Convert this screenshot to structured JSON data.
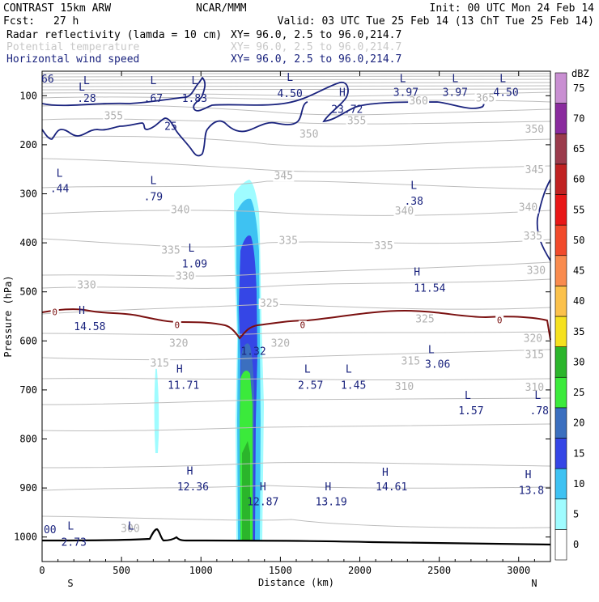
{
  "header": {
    "left_title": "CONTRAST 15km ARW",
    "fcst_label": "Fcst:",
    "fcst_value": "27 h",
    "center_title": "NCAR/MMM",
    "init": "Init: 00 UTC Mon 24 Feb 14",
    "valid": "Valid: 03 UTC Tue 25 Feb 14 (13 ChT Tue 25 Feb 14)",
    "fields": [
      {
        "name": "Radar reflectivity (lamda = 10 cm)",
        "xy": "XY=  96.0,  2.5 to  96.0,214.7",
        "color": "#000000"
      },
      {
        "name": "Potential temperature",
        "xy": "XY=  96.0,  2.5 to  96.0,214.7",
        "color": "#c8c8c8"
      },
      {
        "name": "Horizontal wind speed",
        "xy": "XY=  96.0,  2.5 to  96.0,214.7",
        "color": "#1a237e"
      }
    ]
  },
  "chart_data": {
    "type": "cross-section",
    "title": "CONTRAST 15km ARW",
    "xlabel": "Distance (km)",
    "ylabel": "Pressure (hPa)",
    "xlim": [
      0,
      3200
    ],
    "ylim": [
      1050,
      50
    ],
    "x_ticks": [
      0,
      500,
      1000,
      1500,
      2000,
      2500,
      3000
    ],
    "x_tick_labels": [
      "0",
      "500",
      "1000",
      "1500",
      "2000",
      "2500",
      "3000"
    ],
    "y_ticks": [
      100,
      200,
      300,
      400,
      500,
      600,
      700,
      800,
      900,
      1000
    ],
    "y_tick_labels": [
      "100",
      "200",
      "300",
      "400",
      "500",
      "600",
      "700",
      "800",
      "900",
      "1000"
    ],
    "x_end_labels": {
      "left": "S",
      "right": "N"
    },
    "colorbar": {
      "unit": "dBZ",
      "levels": [
        0,
        5,
        10,
        15,
        20,
        25,
        30,
        35,
        40,
        45,
        50,
        55,
        60,
        65,
        70,
        75
      ],
      "colors": [
        "#ffffff",
        "#9ffcff",
        "#3ec2f2",
        "#3546e6",
        "#3b6fbf",
        "#3bea3b",
        "#2bb52b",
        "#f5e11f",
        "#fbc14b",
        "#f98b4e",
        "#f14a2b",
        "#e81717",
        "#c02222",
        "#9b3b4c",
        "#8a2b9e",
        "#c98fd2"
      ]
    },
    "theta_labels": [
      {
        "text": "365",
        "x": 2790,
        "p": 112
      },
      {
        "text": "360",
        "x": 2370,
        "p": 118
      },
      {
        "text": "355",
        "x": 1980,
        "p": 158
      },
      {
        "text": "355",
        "x": 450,
        "p": 148
      },
      {
        "text": "350",
        "x": 1680,
        "p": 185
      },
      {
        "text": "350",
        "x": 3100,
        "p": 175
      },
      {
        "text": "345",
        "x": 1520,
        "p": 270
      },
      {
        "text": "345",
        "x": 3100,
        "p": 258
      },
      {
        "text": "340",
        "x": 870,
        "p": 340
      },
      {
        "text": "340",
        "x": 2280,
        "p": 342
      },
      {
        "text": "340",
        "x": 3060,
        "p": 335
      },
      {
        "text": "335",
        "x": 810,
        "p": 422
      },
      {
        "text": "335",
        "x": 1550,
        "p": 402
      },
      {
        "text": "335",
        "x": 2150,
        "p": 413
      },
      {
        "text": "335",
        "x": 3090,
        "p": 393
      },
      {
        "text": "330",
        "x": 280,
        "p": 493
      },
      {
        "text": "330",
        "x": 900,
        "p": 475
      },
      {
        "text": "330",
        "x": 3110,
        "p": 463
      },
      {
        "text": "325",
        "x": 1430,
        "p": 530
      },
      {
        "text": "325",
        "x": 2410,
        "p": 562
      },
      {
        "text": "320",
        "x": 860,
        "p": 612
      },
      {
        "text": "320",
        "x": 1500,
        "p": 612
      },
      {
        "text": "320",
        "x": 3090,
        "p": 602
      },
      {
        "text": "315",
        "x": 740,
        "p": 652
      },
      {
        "text": "315",
        "x": 2320,
        "p": 648
      },
      {
        "text": "315",
        "x": 3100,
        "p": 635
      },
      {
        "text": "310",
        "x": 2280,
        "p": 700
      },
      {
        "text": "310",
        "x": 3100,
        "p": 702
      },
      {
        "text": "300",
        "x": 555,
        "p": 990
      }
    ],
    "wind_labels": [
      {
        "text": "L",
        "x": 250,
        "p": 90
      },
      {
        "text": "66",
        "x": 35,
        "p": 73
      },
      {
        "text": "L",
        "x": 280,
        "p": 76
      },
      {
        "text": ".28",
        "x": 280,
        "p": 113
      },
      {
        "text": "L",
        "x": 700,
        "p": 76
      },
      {
        "text": ".67",
        "x": 700,
        "p": 113
      },
      {
        "text": "L",
        "x": 960,
        "p": 76
      },
      {
        "text": "1.83",
        "x": 960,
        "p": 113
      },
      {
        "text": "L",
        "x": 1560,
        "p": 70
      },
      {
        "text": "4.50",
        "x": 1560,
        "p": 103
      },
      {
        "text": "H",
        "x": 1890,
        "p": 100
      },
      {
        "text": "23.72",
        "x": 1920,
        "p": 135
      },
      {
        "text": "L",
        "x": 2270,
        "p": 72
      },
      {
        "text": "3.97",
        "x": 2290,
        "p": 100
      },
      {
        "text": "L",
        "x": 2600,
        "p": 72
      },
      {
        "text": "3.97",
        "x": 2600,
        "p": 100
      },
      {
        "text": "L",
        "x": 2900,
        "p": 72
      },
      {
        "text": "4.50",
        "x": 2920,
        "p": 100
      },
      {
        "text": "25",
        "x": 810,
        "p": 170
      },
      {
        "text": "L",
        "x": 110,
        "p": 265
      },
      {
        "text": ".44",
        "x": 110,
        "p": 297
      },
      {
        "text": "L",
        "x": 700,
        "p": 280
      },
      {
        "text": ".79",
        "x": 700,
        "p": 313
      },
      {
        "text": "L",
        "x": 2340,
        "p": 290
      },
      {
        "text": ".38",
        "x": 2340,
        "p": 322
      },
      {
        "text": "L",
        "x": 940,
        "p": 418
      },
      {
        "text": "1.09",
        "x": 960,
        "p": 450
      },
      {
        "text": "H",
        "x": 2360,
        "p": 467
      },
      {
        "text": "11.54",
        "x": 2440,
        "p": 500
      },
      {
        "text": "H",
        "x": 250,
        "p": 545
      },
      {
        "text": "14.58",
        "x": 300,
        "p": 578
      },
      {
        "text": "1.32",
        "x": 1330,
        "p": 628
      },
      {
        "text": "L",
        "x": 2450,
        "p": 625
      },
      {
        "text": "3.06",
        "x": 2490,
        "p": 655
      },
      {
        "text": "H",
        "x": 865,
        "p": 665
      },
      {
        "text": "11.71",
        "x": 890,
        "p": 698
      },
      {
        "text": "L",
        "x": 1670,
        "p": 665
      },
      {
        "text": "2.57",
        "x": 1690,
        "p": 698
      },
      {
        "text": "L",
        "x": 1930,
        "p": 665
      },
      {
        "text": "1.45",
        "x": 1960,
        "p": 698
      },
      {
        "text": "L",
        "x": 2680,
        "p": 718
      },
      {
        "text": "1.57",
        "x": 2700,
        "p": 750
      },
      {
        "text": "L",
        "x": 3120,
        "p": 718
      },
      {
        "text": ".78",
        "x": 3130,
        "p": 750
      },
      {
        "text": "H",
        "x": 930,
        "p": 873
      },
      {
        "text": "12.36",
        "x": 950,
        "p": 905
      },
      {
        "text": "H",
        "x": 1390,
        "p": 905
      },
      {
        "text": "12.87",
        "x": 1390,
        "p": 935
      },
      {
        "text": "H",
        "x": 1800,
        "p": 905
      },
      {
        "text": "13.19",
        "x": 1820,
        "p": 935
      },
      {
        "text": "H",
        "x": 2160,
        "p": 875
      },
      {
        "text": "14.61",
        "x": 2200,
        "p": 905
      },
      {
        "text": "H",
        "x": 3060,
        "p": 880
      },
      {
        "text": "13.8",
        "x": 3080,
        "p": 912
      },
      {
        "text": "L",
        "x": 180,
        "p": 985
      },
      {
        "text": "2.73",
        "x": 200,
        "p": 1018
      },
      {
        "text": "L",
        "x": 560,
        "p": 985
      },
      {
        "text": "00",
        "x": 50,
        "p": 992
      }
    ],
    "zero_labels": [
      {
        "text": "0",
        "x": 80,
        "p": 546
      },
      {
        "text": "0",
        "x": 850,
        "p": 572
      },
      {
        "text": "0",
        "x": 1640,
        "p": 572
      },
      {
        "text": "0",
        "x": 2880,
        "p": 562
      }
    ]
  }
}
